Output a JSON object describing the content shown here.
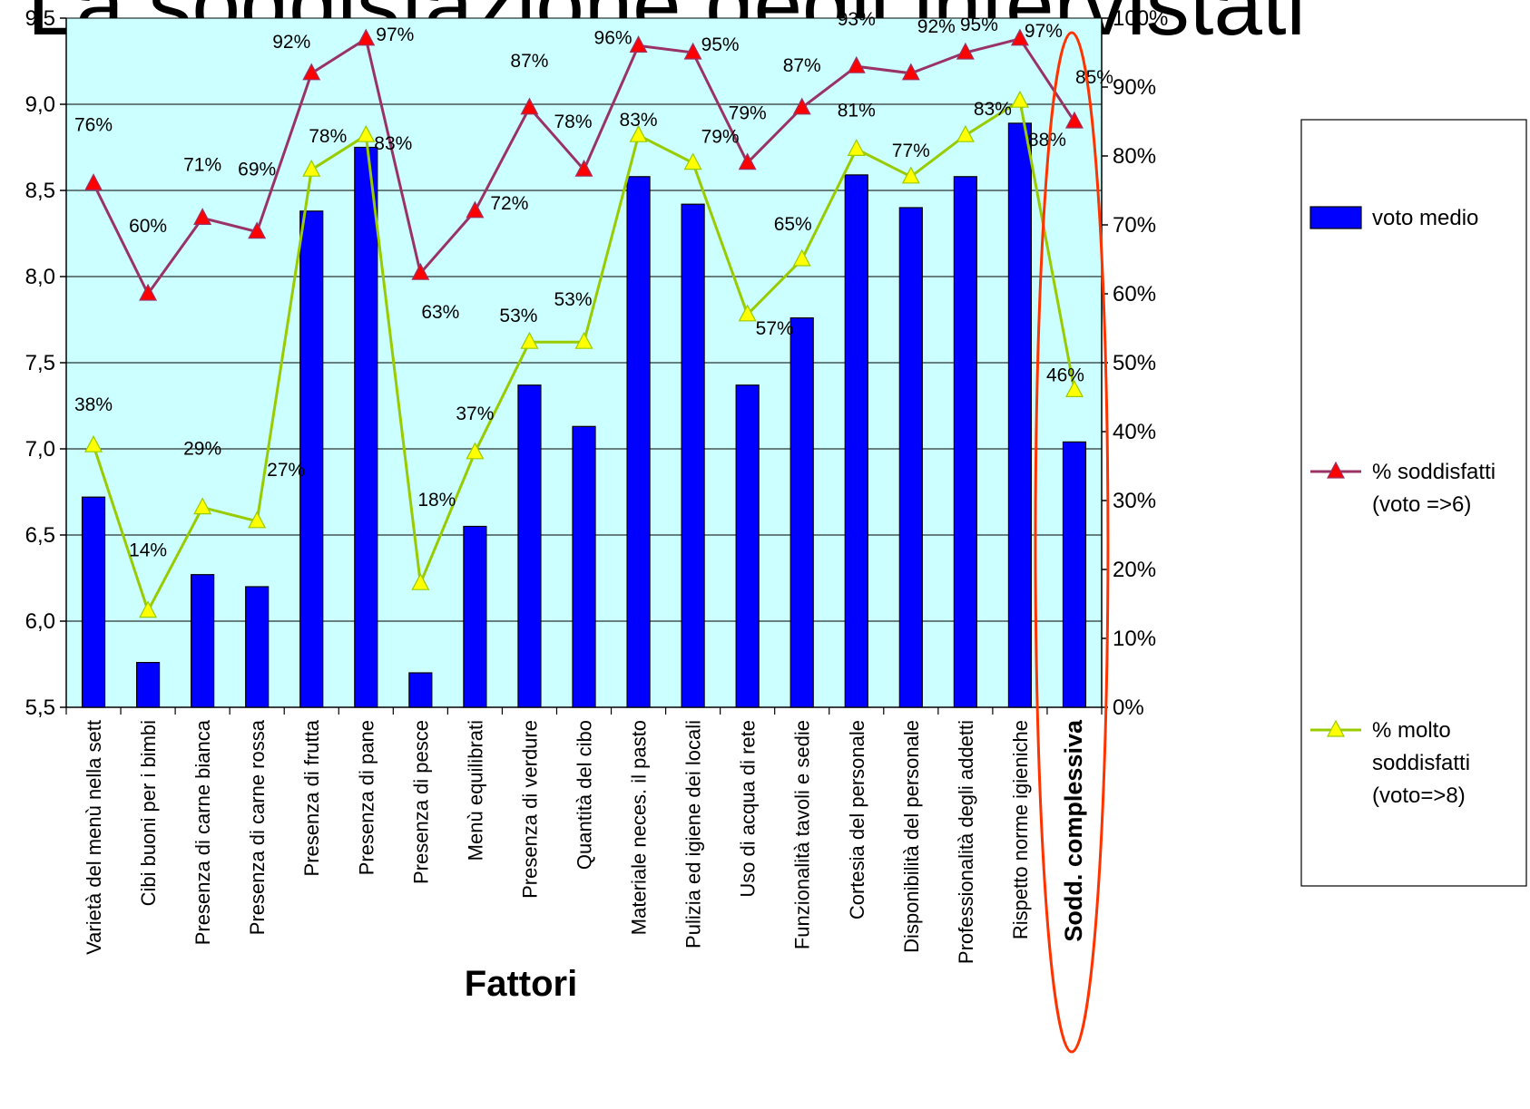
{
  "page": {
    "title": "La soddisfazione degli intervistati"
  },
  "chart_data": {
    "type": "bar",
    "title": "",
    "xlabel": "Fattori",
    "ylabel": "",
    "categories": [
      "Varietà del menù nella sett",
      "Cibi buoni per i bimbi",
      "Presenza di carne bianca",
      "Presenza di carne rossa",
      "Presenza di frutta",
      "Presenza di pane",
      "Presenza di pesce",
      "Menù equilibrati",
      "Presenza di verdure",
      "Quantità del cibo",
      "Materiale neces. il pasto",
      "Pulizia ed igiene dei locali",
      "Uso di acqua di rete",
      "Funzionalità tavoli e sedie",
      "Cortesia del personale",
      "Disponibilità del personale",
      "Professionalità degli addetti",
      "Rispetto norme igieniche",
      "Sodd. complessiva"
    ],
    "highlighted_category": "Sodd. complessiva",
    "y_left": {
      "ylim": [
        5.5,
        9.5
      ],
      "ticks": [
        "5,5",
        "6,0",
        "6,5",
        "7,0",
        "7,5",
        "8,0",
        "8,5",
        "9,0",
        "9,5"
      ]
    },
    "y_right": {
      "ylim": [
        0,
        100
      ],
      "ticks": [
        "0%",
        "10%",
        "20%",
        "30%",
        "40%",
        "50%",
        "60%",
        "70%",
        "80%",
        "90%",
        "100%"
      ]
    },
    "series": [
      {
        "name": "voto medio",
        "type": "bar",
        "axis": "left",
        "color": "#0000ff",
        "values": [
          6.72,
          5.76,
          6.27,
          6.2,
          8.38,
          8.75,
          5.7,
          6.55,
          7.37,
          7.13,
          8.58,
          8.42,
          7.37,
          7.76,
          8.59,
          8.4,
          8.58,
          8.89,
          7.04
        ]
      },
      {
        "name": "% soddisfatti (voto =>6)",
        "legend_lines": [
          "% soddisfatti",
          "(voto =>6)"
        ],
        "type": "line",
        "axis": "right",
        "color": "#993366",
        "marker_color": "#ff0000",
        "values": [
          76,
          60,
          71,
          69,
          92,
          97,
          63,
          72,
          87,
          78,
          96,
          95,
          79,
          87,
          93,
          92,
          95,
          97,
          85
        ],
        "labels": [
          "76%",
          "60%",
          "71%",
          "69%",
          "92%",
          "97%",
          "63%",
          "72%",
          "87%",
          "78%",
          "96%",
          "95%",
          "79%",
          "87%",
          "93%",
          "92%",
          "95%",
          "97%",
          "85%"
        ]
      },
      {
        "name": "% molto soddisfatti (voto=>8)",
        "legend_lines": [
          "% molto",
          "soddisfatti",
          "(voto=>8)"
        ],
        "type": "line",
        "axis": "right",
        "color": "#99cc00",
        "marker_color": "#ffff00",
        "values": [
          38,
          14,
          29,
          27,
          78,
          83,
          18,
          37,
          53,
          53,
          83,
          79,
          57,
          65,
          81,
          77,
          83,
          88,
          46
        ],
        "labels": [
          "38%",
          "14%",
          "29%",
          "27%",
          "78%",
          "83%",
          "18%",
          "37%",
          "53%",
          "53%",
          "83%",
          "79%",
          "57%",
          "65%",
          "81%",
          "77%",
          "83%",
          "88%",
          "46%"
        ]
      }
    ],
    "plot_background": "#ccffff",
    "highlight_color": "#ff3300",
    "grid": true,
    "legend_position": "right"
  }
}
